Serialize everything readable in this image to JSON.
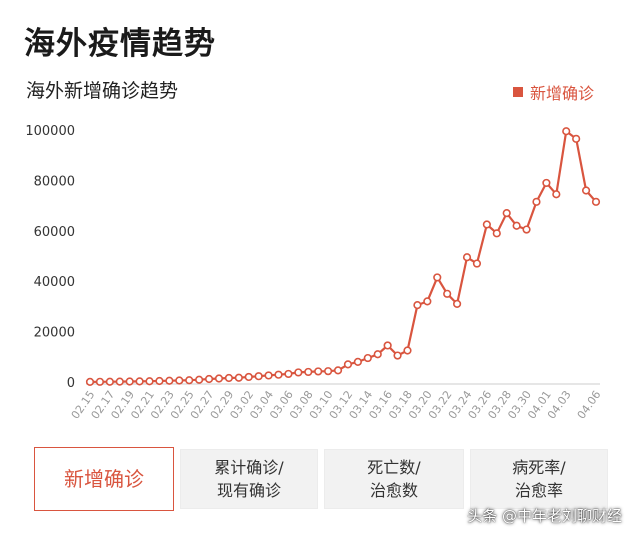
{
  "page": {
    "title": "海外疫情趋势"
  },
  "chart_data": {
    "type": "line",
    "title": "海外新增确诊趋势",
    "legend": "新增确诊",
    "legend_position": "top-right",
    "color": "#d9553f",
    "ylim": [
      0,
      100000
    ],
    "yticks": [
      "0",
      "20000",
      "40000",
      "60000",
      "80000",
      "100000"
    ],
    "grid": false,
    "x": [
      "02.15",
      "02.16",
      "02.17",
      "02.18",
      "02.19",
      "02.20",
      "02.21",
      "02.22",
      "02.23",
      "02.24",
      "02.25",
      "02.26",
      "02.27",
      "02.28",
      "02.29",
      "03.01",
      "03.02",
      "03.03",
      "03.04",
      "03.05",
      "03.06",
      "03.07",
      "03.08",
      "03.09",
      "03.10",
      "03.11",
      "03.12",
      "03.13",
      "03.14",
      "03.15",
      "03.16",
      "03.17",
      "03.18",
      "03.19",
      "03.20",
      "03.21",
      "03.22",
      "03.23",
      "03.24",
      "03.25",
      "03.26",
      "03.27",
      "03.28",
      "03.29",
      "03.30",
      "03.31",
      "04.01",
      "04.02",
      "04.03",
      "04.04",
      "04.05",
      "04.06"
    ],
    "xtick_labels": [
      "02.15",
      "02.17",
      "02.19",
      "02.21",
      "02.23",
      "02.25",
      "02.27",
      "02.29",
      "03.02",
      "03.04",
      "03.06",
      "03.08",
      "03.10",
      "03.12",
      "03.14",
      "03.16",
      "03.18",
      "03.20",
      "03.22",
      "03.24",
      "03.26",
      "03.28",
      "03.30",
      "04.01",
      "04.03",
      "04.06"
    ],
    "series": [
      {
        "name": "新增确诊",
        "values": [
          50,
          80,
          100,
          150,
          200,
          250,
          300,
          400,
          500,
          600,
          700,
          900,
          1200,
          1400,
          1600,
          1700,
          2000,
          2300,
          2600,
          2900,
          3200,
          3800,
          4000,
          4200,
          4300,
          4600,
          7000,
          8000,
          9500,
          11000,
          14500,
          10500,
          12500,
          30500,
          32000,
          41500,
          35000,
          31000,
          49500,
          47000,
          62500,
          59000,
          67000,
          62000,
          60500,
          71500,
          79000,
          74500,
          99500,
          96500,
          76000,
          71500
        ]
      }
    ]
  },
  "tabs": [
    {
      "lines": [
        "新增确诊"
      ],
      "active": true
    },
    {
      "lines": [
        "累计确诊/",
        "现有确诊"
      ],
      "active": false
    },
    {
      "lines": [
        "死亡数/",
        "治愈数"
      ],
      "active": false
    },
    {
      "lines": [
        "病死率/",
        "治愈率"
      ],
      "active": false
    }
  ],
  "watermark": "头条 @中年老刘聊财经"
}
